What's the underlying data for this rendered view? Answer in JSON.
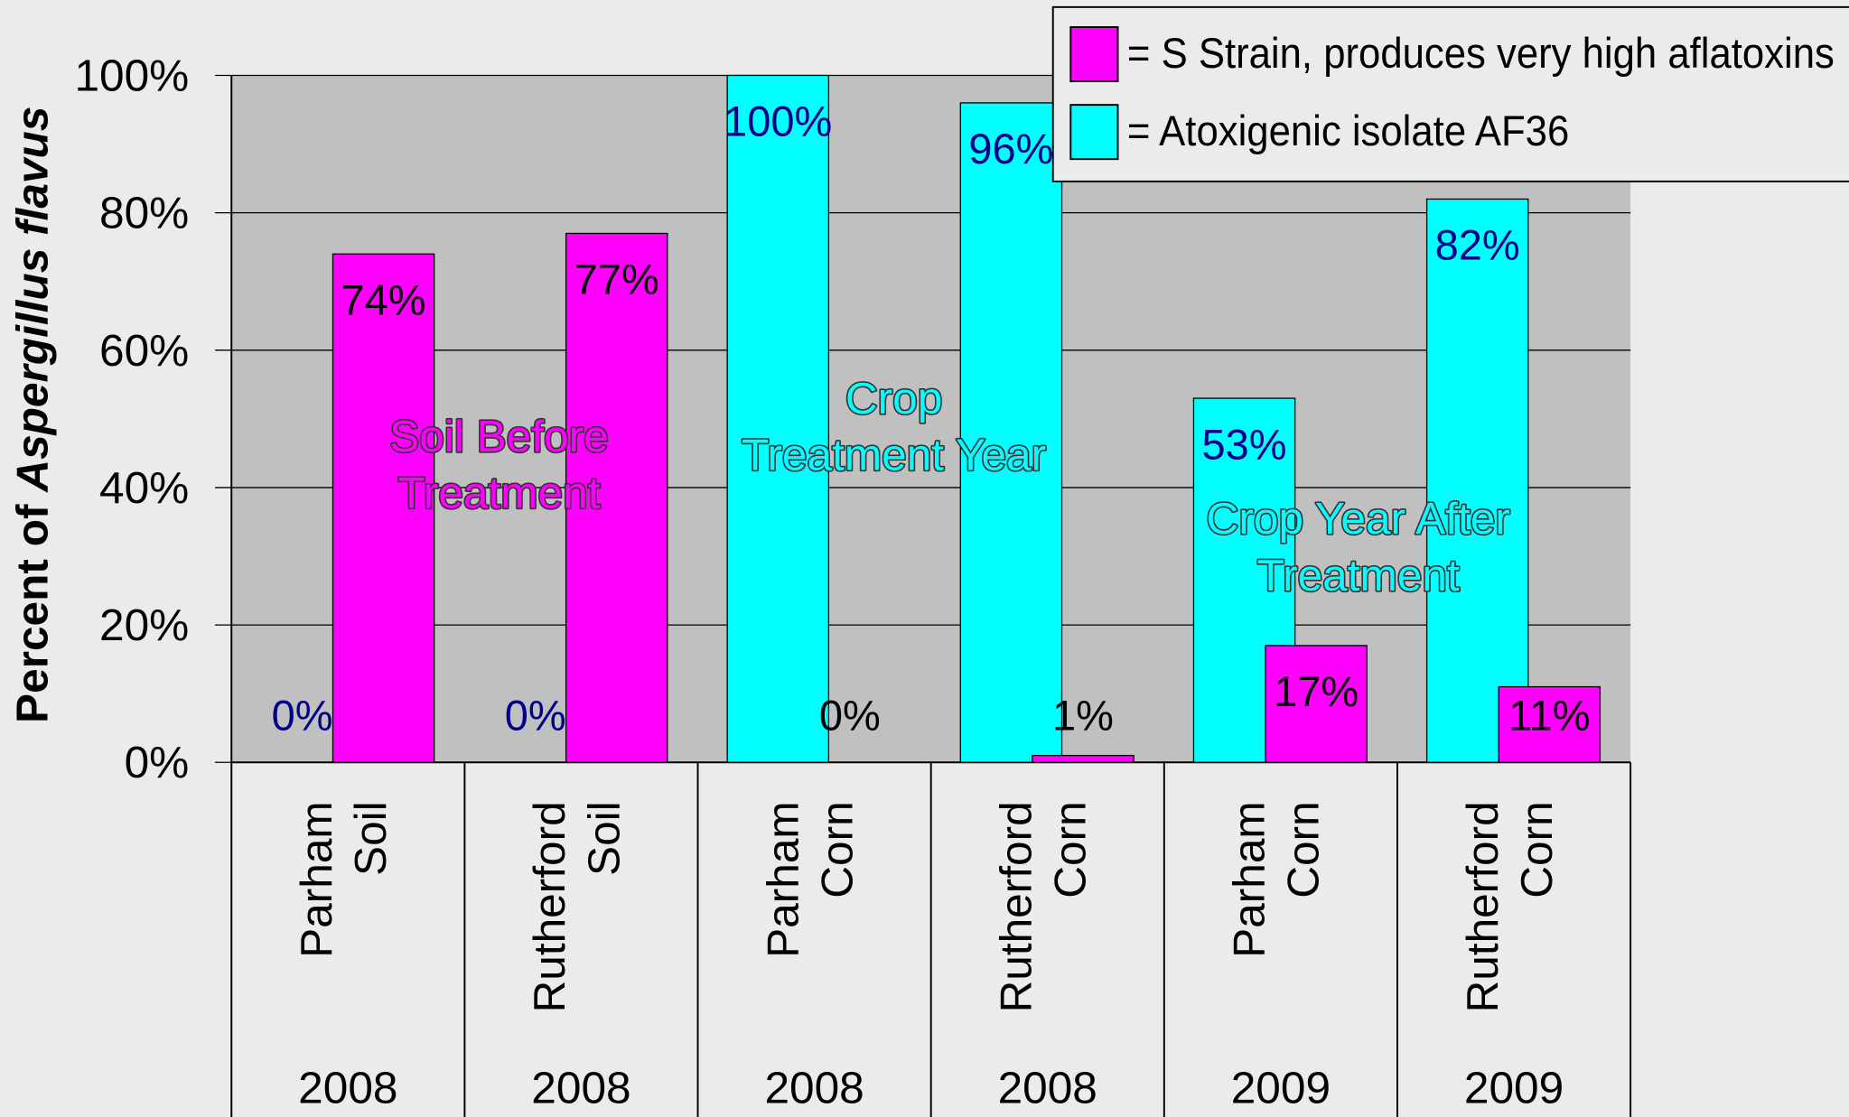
{
  "chart_data": {
    "type": "bar",
    "y_label": [
      "Percent of ",
      "Aspergillus flavus"
    ],
    "categories": [
      [
        "Parham",
        "Soil"
      ],
      [
        "Rutherford",
        "Soil"
      ],
      [
        "Parham",
        "Corn"
      ],
      [
        "Rutherford",
        "Corn"
      ],
      [
        "Parham",
        "Corn"
      ],
      [
        "Rutherford",
        "Corn"
      ]
    ],
    "years": [
      "2008",
      "2008",
      "2008",
      "2008",
      "2009",
      "2009"
    ],
    "series": [
      {
        "name": "= S Strain, produces very high aflatoxins",
        "color": "#ff00ff",
        "label_color": "#000000",
        "values": [
          74,
          77,
          0,
          1,
          17,
          11
        ],
        "value_labels": [
          "74%",
          "77%",
          "0%",
          "1%",
          "17%",
          "11%"
        ]
      },
      {
        "name": "= Atoxigenic isolate AF36",
        "color": "#00ffff",
        "label_color": "#00008b",
        "values": [
          0,
          0,
          100,
          96,
          53,
          82
        ],
        "value_labels": [
          "0%",
          "0%",
          "100%",
          "96%",
          "53%",
          "82%"
        ]
      }
    ],
    "annotations": [
      {
        "lines": [
          "Soil Before",
          "Treatment"
        ],
        "color": "#ff00ff"
      },
      {
        "lines": [
          "Crop",
          "Treatment Year"
        ],
        "color": "#00ffff"
      },
      {
        "lines": [
          "Crop Year After",
          "Treatment"
        ],
        "color": "#00ffff"
      }
    ],
    "ylim": [
      0,
      100
    ],
    "yticks": [
      {
        "value": 0,
        "label": "0%"
      },
      {
        "value": 20,
        "label": "20%"
      },
      {
        "value": 40,
        "label": "40%"
      },
      {
        "value": 60,
        "label": "60%"
      },
      {
        "value": 80,
        "label": "80%"
      },
      {
        "value": 100,
        "label": "100%"
      }
    ],
    "grid": true,
    "legend": "top-right"
  }
}
